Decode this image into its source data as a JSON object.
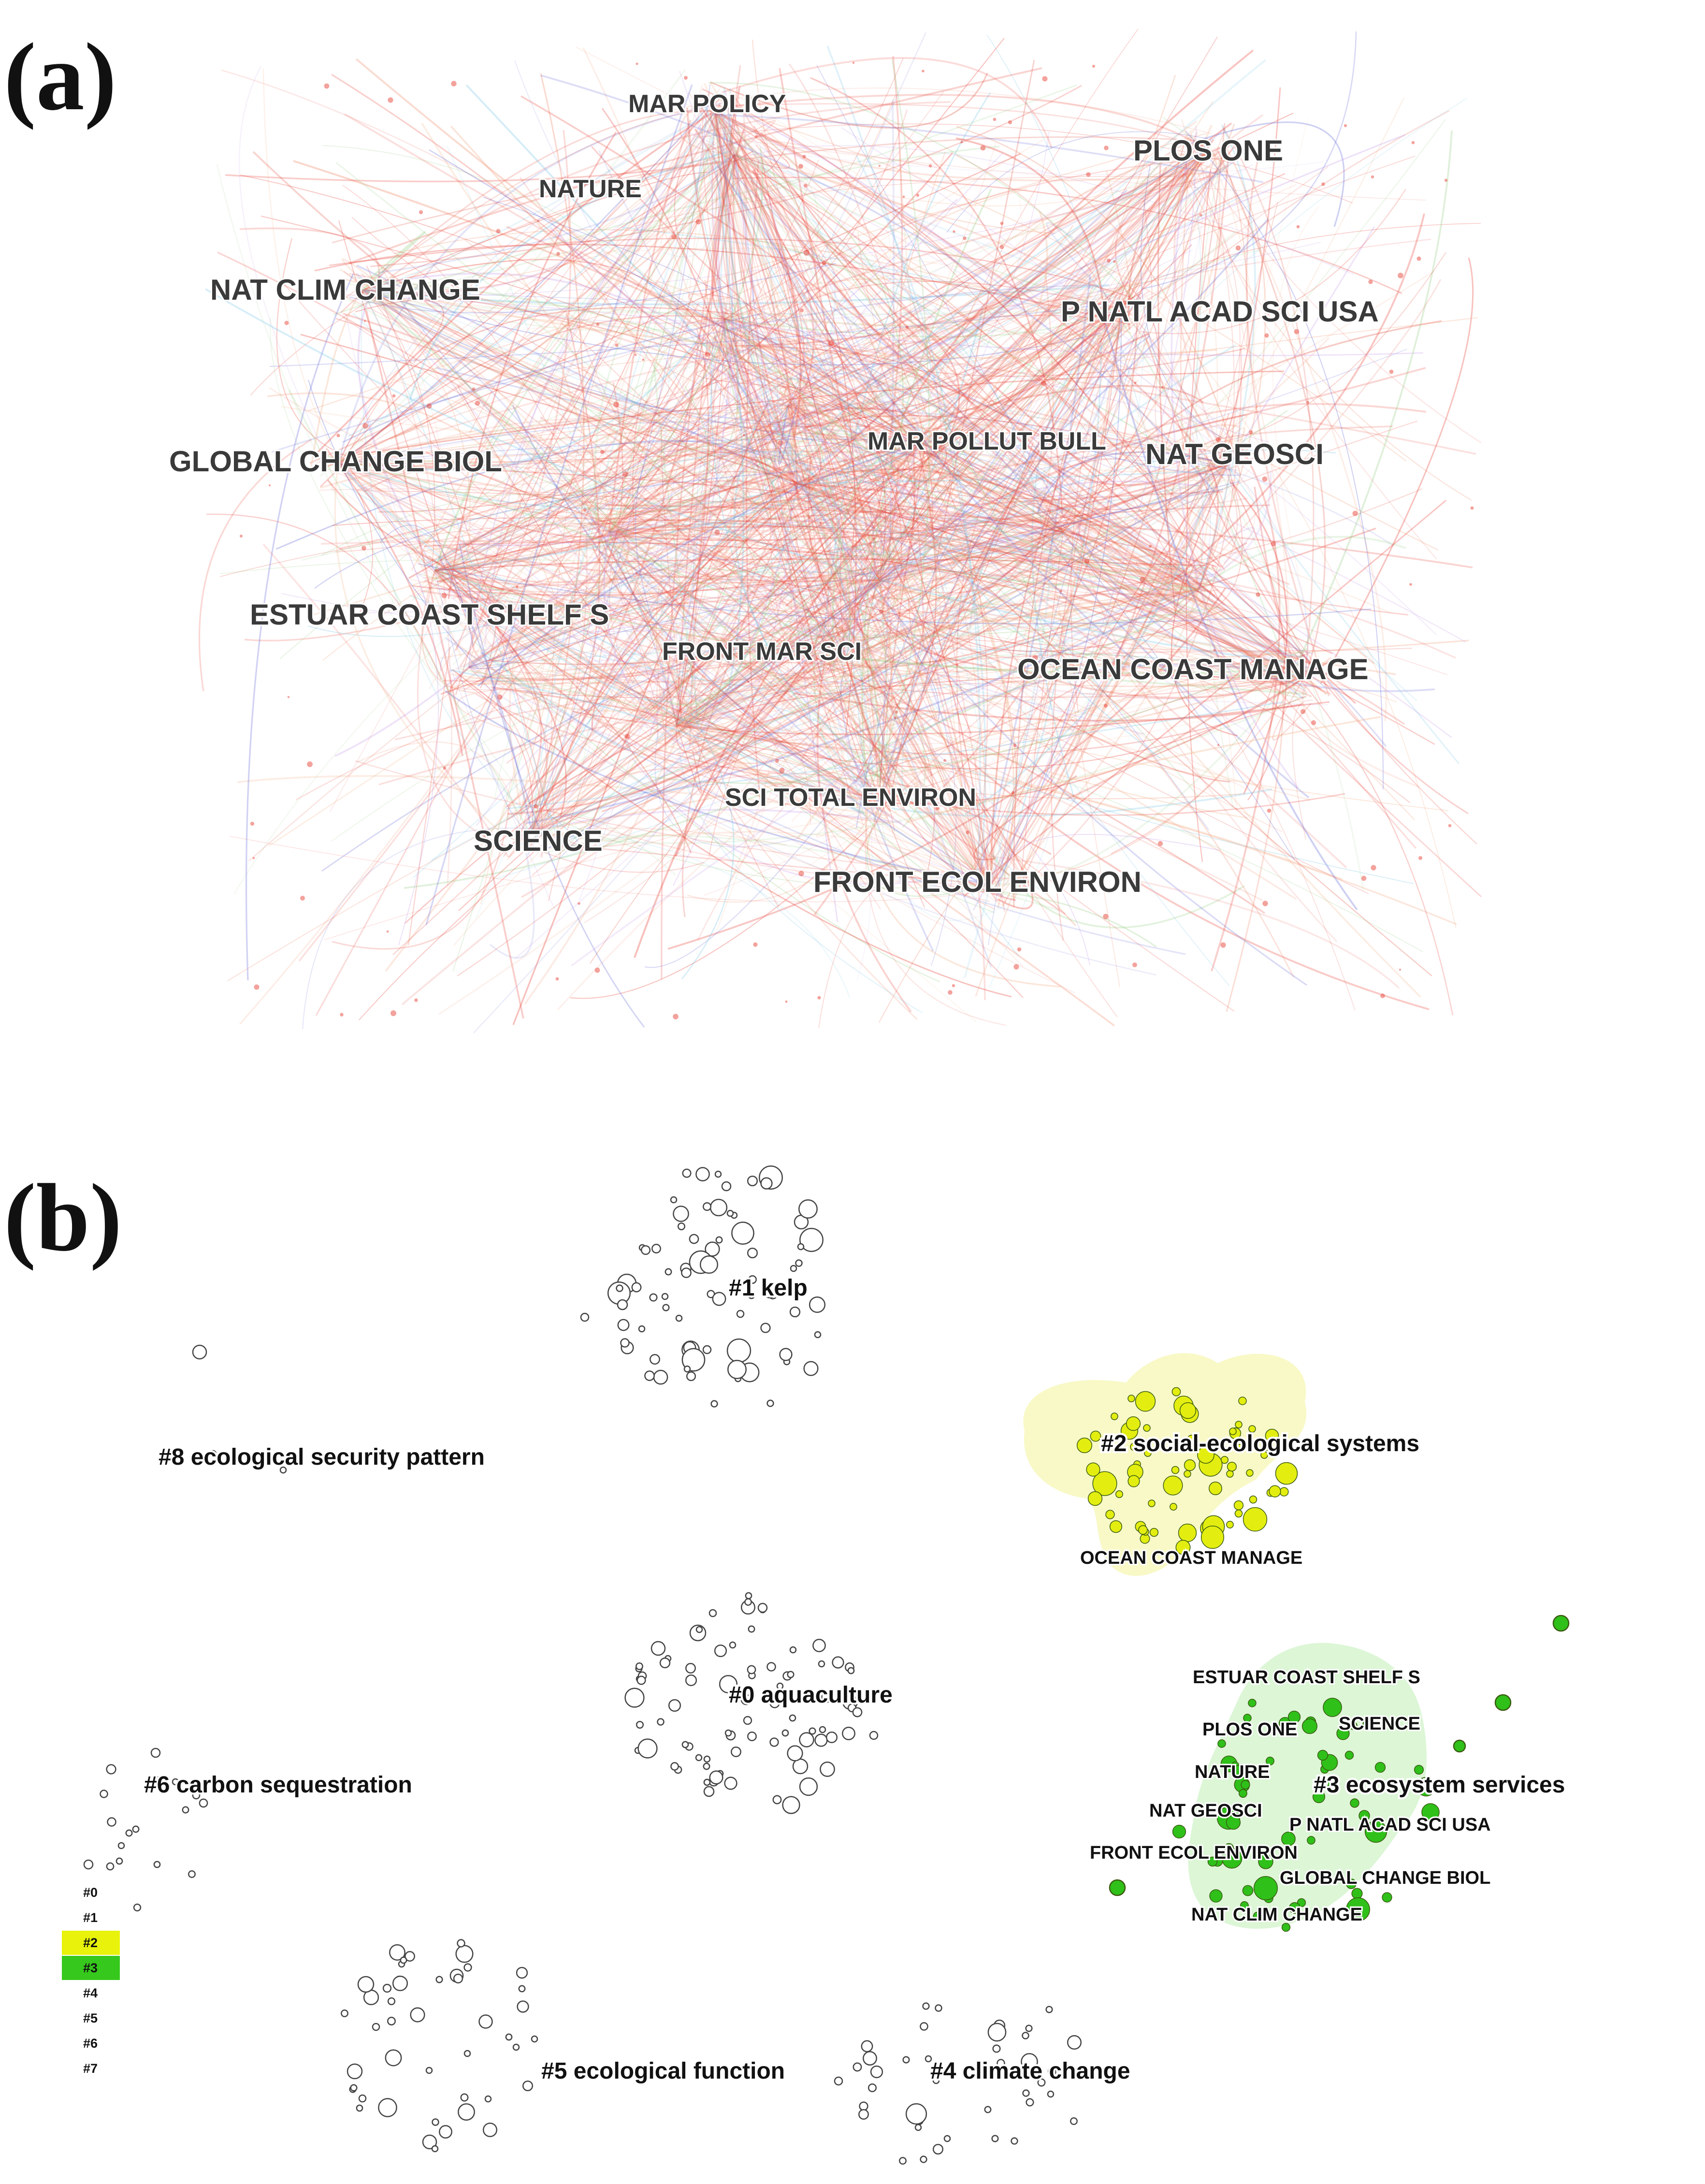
{
  "panel_a": {
    "letter": "(a)",
    "labels": [
      {
        "id": "mar-policy",
        "text": "MAR POLICY"
      },
      {
        "id": "nature",
        "text": "NATURE"
      },
      {
        "id": "plos-one",
        "text": "PLOS ONE"
      },
      {
        "id": "nat-clim-change",
        "text": "NAT CLIM CHANGE"
      },
      {
        "id": "p-natl-acad",
        "text": "P NATL ACAD SCI USA"
      },
      {
        "id": "global-change-biol",
        "text": "GLOBAL CHANGE BIOL"
      },
      {
        "id": "mar-pollut-bull",
        "text": "MAR POLLUT BULL"
      },
      {
        "id": "nat-geosci",
        "text": "NAT GEOSCI"
      },
      {
        "id": "estuar-coast",
        "text": "ESTUAR COAST SHELF S"
      },
      {
        "id": "front-mar-sci",
        "text": "FRONT MAR SCI"
      },
      {
        "id": "ocean-coast-manage",
        "text": "OCEAN COAST MANAGE"
      },
      {
        "id": "sci-total-environ",
        "text": "SCI TOTAL ENVIRON"
      },
      {
        "id": "science",
        "text": "SCIENCE"
      },
      {
        "id": "front-ecol-environ",
        "text": "FRONT ECOL ENVIRON"
      }
    ]
  },
  "panel_b": {
    "letter": "(b)",
    "clusters": [
      {
        "id": "c1",
        "text": "#1 kelp"
      },
      {
        "id": "c8",
        "text": "#8 ecological security pattern"
      },
      {
        "id": "c2",
        "text": "#2 social-ecological systems"
      },
      {
        "id": "c0",
        "text": "#0 aquaculture"
      },
      {
        "id": "c6",
        "text": "#6 carbon sequestration"
      },
      {
        "id": "c3",
        "text": "#3 ecosystem services"
      },
      {
        "id": "c5",
        "text": "#5 ecological function"
      },
      {
        "id": "c4",
        "text": "#4 climate change"
      }
    ],
    "journals": [
      {
        "id": "ocean-coast-manage",
        "text": "OCEAN COAST MANAGE"
      },
      {
        "id": "estuar-coast",
        "text": "ESTUAR COAST SHELF S"
      },
      {
        "id": "plos-one",
        "text": "PLOS ONE"
      },
      {
        "id": "science",
        "text": "SCIENCE"
      },
      {
        "id": "nature",
        "text": "NATURE"
      },
      {
        "id": "nat-geosci",
        "text": "NAT GEOSCI"
      },
      {
        "id": "p-natl-acad",
        "text": "P NATL ACAD SCI USA"
      },
      {
        "id": "front-ecol-environ",
        "text": "FRONT ECOL ENVIRON"
      },
      {
        "id": "global-change-biol",
        "text": "GLOBAL CHANGE BIOL"
      },
      {
        "id": "nat-clim-change",
        "text": "NAT CLIM CHANGE"
      }
    ],
    "legend": [
      {
        "label": "#0",
        "color": ""
      },
      {
        "label": "#1",
        "color": ""
      },
      {
        "label": "#2",
        "color": "#e8f20a"
      },
      {
        "label": "#3",
        "color": "#36c81c"
      },
      {
        "label": "#4",
        "color": ""
      },
      {
        "label": "#5",
        "color": ""
      },
      {
        "label": "#6",
        "color": ""
      },
      {
        "label": "#7",
        "color": ""
      }
    ],
    "colors": {
      "cluster2": "#e3ee10",
      "cluster3": "#2fc01a",
      "hull2": "#f7f8c0",
      "hull3": "#d8f5d2"
    }
  }
}
